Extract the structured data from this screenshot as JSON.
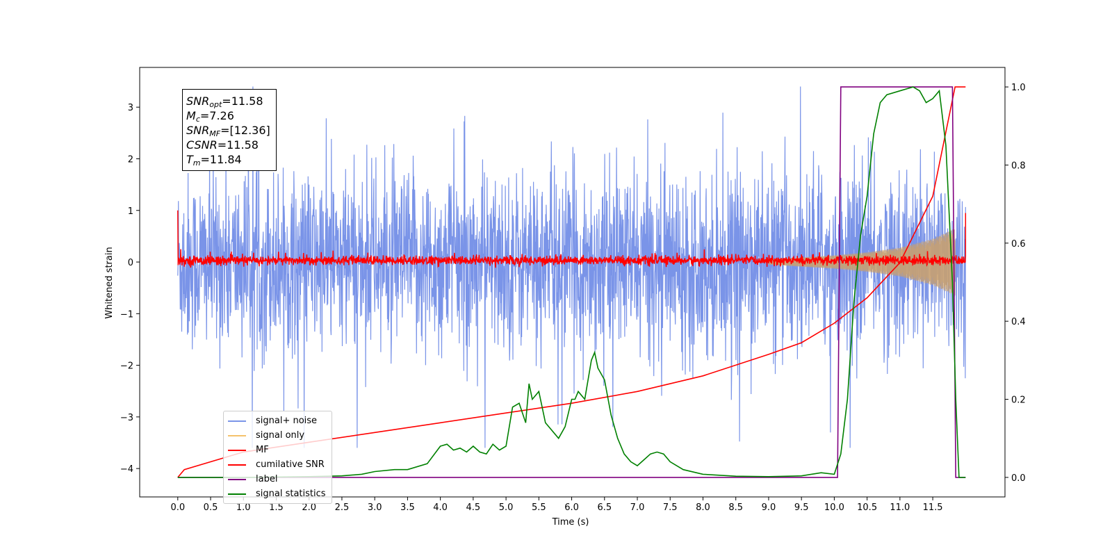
{
  "chart_data": {
    "type": "line",
    "xlabel": "Time (s)",
    "ylabel": "Whitened strain",
    "ylabel_right": "",
    "xlim": [
      -0.58,
      12.6
    ],
    "ylim": [
      -4.55,
      3.77
    ],
    "ylim_right": [
      -0.05,
      1.05
    ],
    "x_ticks": [
      0.0,
      0.5,
      1.0,
      1.5,
      2.0,
      2.5,
      3.0,
      3.5,
      4.0,
      4.5,
      5.0,
      5.5,
      6.0,
      6.5,
      7.0,
      7.5,
      8.0,
      8.5,
      9.0,
      9.5,
      10.0,
      10.5,
      11.0,
      11.5
    ],
    "x_tick_labels": [
      "0.0",
      "0.5",
      "1.0",
      "1.5",
      "2.0",
      "2.5",
      "3.0",
      "3.5",
      "4.0",
      "4.5",
      "5.0",
      "5.5",
      "6.0",
      "6.5",
      "7.0",
      "7.5",
      "8.0",
      "8.5",
      "9.0",
      "9.5",
      "10.0",
      "10.5",
      "11.0",
      "11.5"
    ],
    "y_ticks": [
      -4,
      -3,
      -2,
      -1,
      0,
      1,
      2,
      3
    ],
    "y_tick_labels": [
      "−4",
      "−3",
      "−2",
      "−1",
      "0",
      "1",
      "2",
      "3"
    ],
    "y_ticks_right": [
      0.0,
      0.2,
      0.4,
      0.6,
      0.8,
      1.0
    ],
    "y_tick_labels_right": [
      "0.0",
      "0.2",
      "0.4",
      "0.6",
      "0.8",
      "1.0"
    ],
    "legend_placement": "lower-left",
    "series": [
      {
        "name": "signal+ noise",
        "axis": "left",
        "color": "#7a94e8",
        "description": "whitened noisy strain, roughly ±2.2 envelope with spikes to ±3.4 between t=0.0 and t=12.0"
      },
      {
        "name": "signal only",
        "axis": "left",
        "color": "#f5c26b",
        "envelope_amplitude": {
          "x": [
            9.0,
            9.5,
            10.0,
            10.5,
            11.0,
            11.5,
            11.84
          ],
          "y": [
            0.05,
            0.09,
            0.13,
            0.19,
            0.28,
            0.45,
            0.65
          ]
        }
      },
      {
        "name": "MF",
        "axis": "left",
        "color": "#ff0000",
        "description": "matched filter output, near 0 with ±0.15 fluctuations; starts at 1.0 at t=0.0 and rises to 0.95 at t=12.0"
      },
      {
        "name": "cumilative SNR",
        "axis": "right",
        "color": "#ff0000",
        "x": [
          0.0,
          0.1,
          1.0,
          2.0,
          3.0,
          4.0,
          5.0,
          6.0,
          7.0,
          8.0,
          9.0,
          9.5,
          10.0,
          10.5,
          11.0,
          11.5,
          11.84,
          12.0
        ],
        "y": [
          0.0,
          0.02,
          0.065,
          0.09,
          0.115,
          0.14,
          0.165,
          0.19,
          0.22,
          0.26,
          0.315,
          0.345,
          0.395,
          0.46,
          0.55,
          0.72,
          1.0,
          1.0
        ]
      },
      {
        "name": "label",
        "axis": "right",
        "color": "#800080",
        "x": [
          0.0,
          10.05,
          10.1,
          11.8,
          11.85,
          12.0
        ],
        "y": [
          0.0,
          0.0,
          1.0,
          1.0,
          0.0,
          0.0
        ]
      },
      {
        "name": "signal statistics",
        "axis": "right",
        "color": "#008000",
        "x": [
          0.0,
          1.0,
          2.0,
          2.5,
          2.8,
          3.0,
          3.3,
          3.5,
          3.8,
          4.0,
          4.1,
          4.2,
          4.3,
          4.4,
          4.5,
          4.6,
          4.7,
          4.8,
          4.9,
          5.0,
          5.1,
          5.2,
          5.3,
          5.35,
          5.4,
          5.5,
          5.6,
          5.8,
          5.9,
          6.0,
          6.05,
          6.1,
          6.2,
          6.3,
          6.35,
          6.4,
          6.5,
          6.6,
          6.7,
          6.8,
          6.9,
          7.0,
          7.1,
          7.2,
          7.3,
          7.4,
          7.5,
          7.7,
          8.0,
          8.5,
          9.0,
          9.5,
          9.8,
          10.0,
          10.1,
          10.2,
          10.3,
          10.4,
          10.5,
          10.6,
          10.7,
          10.8,
          11.0,
          11.2,
          11.3,
          11.4,
          11.5,
          11.6,
          11.7,
          11.8,
          11.85,
          11.9,
          12.0
        ],
        "y": [
          0.0,
          0.0,
          0.002,
          0.004,
          0.008,
          0.015,
          0.02,
          0.02,
          0.035,
          0.08,
          0.085,
          0.07,
          0.075,
          0.065,
          0.08,
          0.065,
          0.06,
          0.085,
          0.07,
          0.08,
          0.18,
          0.19,
          0.14,
          0.24,
          0.2,
          0.22,
          0.14,
          0.1,
          0.13,
          0.2,
          0.2,
          0.22,
          0.2,
          0.3,
          0.32,
          0.28,
          0.25,
          0.16,
          0.1,
          0.06,
          0.04,
          0.03,
          0.045,
          0.06,
          0.065,
          0.06,
          0.04,
          0.02,
          0.008,
          0.003,
          0.002,
          0.004,
          0.012,
          0.008,
          0.06,
          0.2,
          0.45,
          0.62,
          0.72,
          0.88,
          0.96,
          0.98,
          0.99,
          1.0,
          0.99,
          0.96,
          0.97,
          0.99,
          0.85,
          0.5,
          0.2,
          0.0,
          0.0
        ]
      }
    ]
  },
  "stats": {
    "snr_opt": {
      "sym": "SNR",
      "sub": "opt",
      "value": "=11.58"
    },
    "mc": {
      "sym": "M",
      "sub": "c",
      "value": "=7.26"
    },
    "snr_mf": {
      "sym": "SNR",
      "sub": "MF",
      "value": "=[12.36]"
    },
    "csnr": {
      "sym": "CSNR",
      "sub": "",
      "value": "=11.58"
    },
    "tm": {
      "sym": "T",
      "sub": "m",
      "value": "=11.84"
    }
  },
  "legend": {
    "items": [
      {
        "label": "signal+ noise",
        "color": "#7a94e8"
      },
      {
        "label": "signal only",
        "color": "#f5c26b"
      },
      {
        "label": "MF",
        "color": "#ff0000"
      },
      {
        "label": "cumilative SNR",
        "color": "#ff0000"
      },
      {
        "label": "label",
        "color": "#800080"
      },
      {
        "label": "signal statistics",
        "color": "#008000"
      }
    ]
  }
}
